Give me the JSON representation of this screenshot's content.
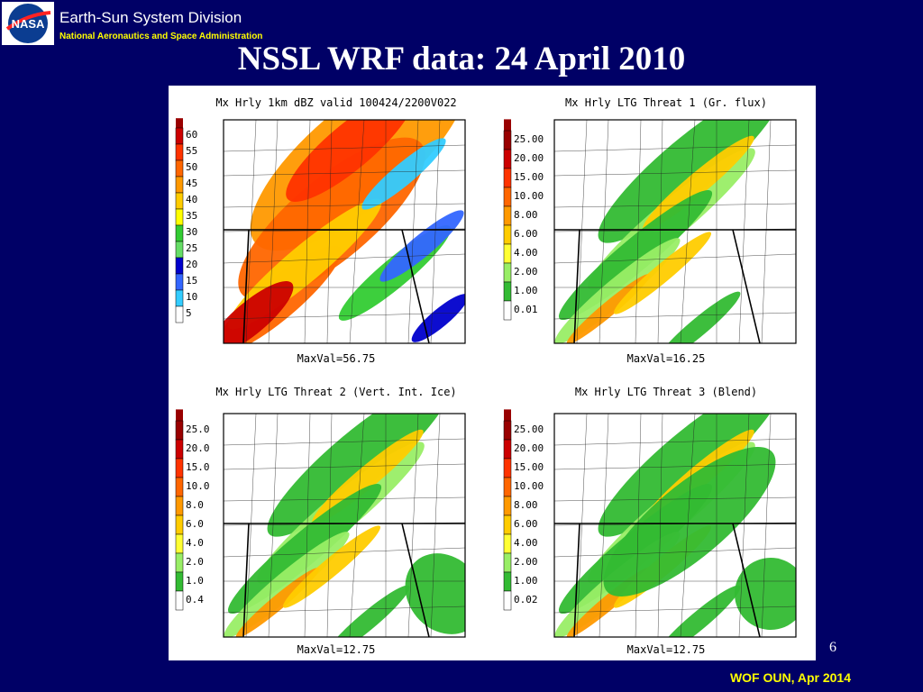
{
  "header": {
    "org_name": "Earth-Sun System Division",
    "agency": "National Aeronautics and Space Administration",
    "logo_text": "NASA"
  },
  "slide": {
    "title": "NSSL WRF data: 24 April 2010",
    "page_number": "6",
    "footer": "WOF OUN, Apr 2014"
  },
  "panels": [
    {
      "title": "Mx Hrly 1km dBZ valid 100424/2200V022",
      "maxval": "MaxVal=56.75",
      "legend": [
        "60",
        "55",
        "50",
        "45",
        "40",
        "35",
        "30",
        "25",
        "20",
        "15",
        "10",
        "5"
      ],
      "legend_colors": [
        "#cc0000",
        "#ff3300",
        "#ff6600",
        "#ff9900",
        "#ffcc00",
        "#ffff00",
        "#33cc33",
        "#66dd66",
        "#0000cc",
        "#3366ff",
        "#33ccff",
        "#ffffff"
      ],
      "palette": "dbz"
    },
    {
      "title": "Mx Hrly LTG Threat 1 (Gr. flux)",
      "maxval": "MaxVal=16.25",
      "legend": [
        "25.00",
        "20.00",
        "15.00",
        "10.00",
        "8.00",
        "6.00",
        "4.00",
        "2.00",
        "1.00",
        "0.01"
      ],
      "legend_colors": [
        "#990000",
        "#cc0000",
        "#ff3300",
        "#ff6600",
        "#ff9900",
        "#ffcc00",
        "#ffff33",
        "#99ee66",
        "#33bb33",
        "#ffffff"
      ],
      "palette": "ltg"
    },
    {
      "title": "Mx Hrly LTG Threat 2 (Vert. Int. Ice)",
      "maxval": "MaxVal=12.75",
      "legend": [
        "25.0",
        "20.0",
        "15.0",
        "10.0",
        "8.0",
        "6.0",
        "4.0",
        "2.0",
        "1.0",
        "0.4"
      ],
      "legend_colors": [
        "#990000",
        "#cc0000",
        "#ff3300",
        "#ff6600",
        "#ff9900",
        "#ffcc00",
        "#ffff33",
        "#99ee66",
        "#33bb33",
        "#ffffff"
      ],
      "palette": "ltg"
    },
    {
      "title": "Mx Hrly LTG Threat 3 (Blend)",
      "maxval": "MaxVal=12.75",
      "legend": [
        "25.00",
        "20.00",
        "15.00",
        "10.00",
        "8.00",
        "6.00",
        "4.00",
        "2.00",
        "1.00",
        "0.02"
      ],
      "legend_colors": [
        "#990000",
        "#cc0000",
        "#ff3300",
        "#ff6600",
        "#ff9900",
        "#ffcc00",
        "#ffff33",
        "#99ee66",
        "#33bb33",
        "#ffffff"
      ],
      "palette": "ltg"
    }
  ]
}
